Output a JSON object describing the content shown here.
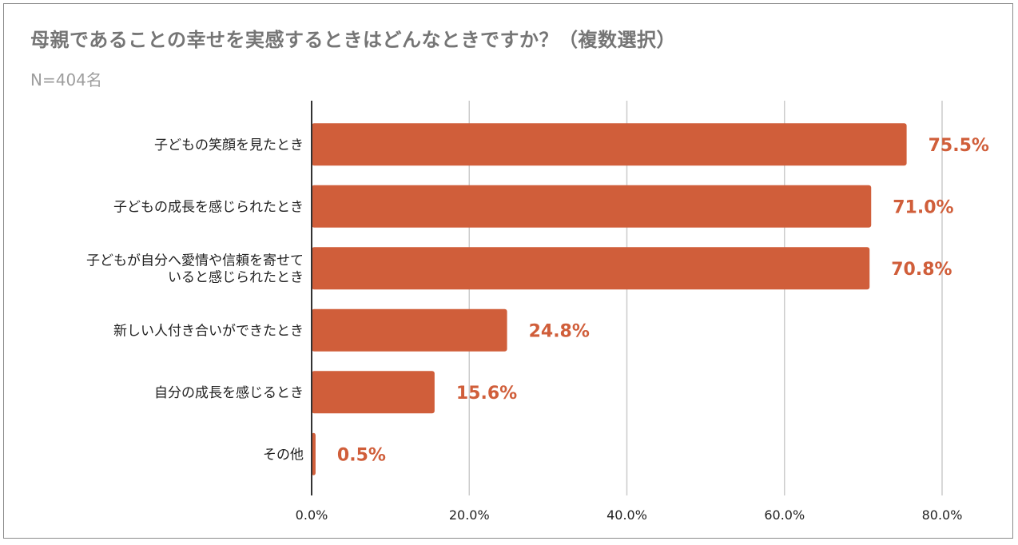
{
  "title": "母親であることの幸せを実感するときはどんなときですか？（複数選択）",
  "subtitle": "N=404名",
  "colors": {
    "bar": "#d05e3a",
    "label": "#d05e3a",
    "grid": "#cccccc",
    "axis": "#333333"
  },
  "chart_data": {
    "type": "bar",
    "orientation": "horizontal",
    "title": "母親であることの幸せを実感するときはどんなときですか？（複数選択）",
    "subtitle": "N=404名",
    "categories": [
      "子どもの笑顔を見たとき",
      "子どもの成長を感じられたとき",
      "子どもが自分へ愛情や信頼を寄せて|いると感じられたとき",
      "新しい人付き合いができたとき",
      "自分の成長を感じるとき",
      "その他"
    ],
    "values": [
      75.5,
      71.0,
      70.8,
      24.8,
      15.6,
      0.5
    ],
    "data_labels": [
      "75.5%",
      "71.0%",
      "70.8%",
      "24.8%",
      "15.6%",
      "0.5%"
    ],
    "xlim": [
      0,
      80
    ],
    "ticks": [
      0,
      20,
      40,
      60,
      80
    ],
    "tick_labels": [
      "0.0%",
      "20.0%",
      "40.0%",
      "60.0%",
      "80.0%"
    ],
    "grid": true,
    "legend": "none"
  }
}
